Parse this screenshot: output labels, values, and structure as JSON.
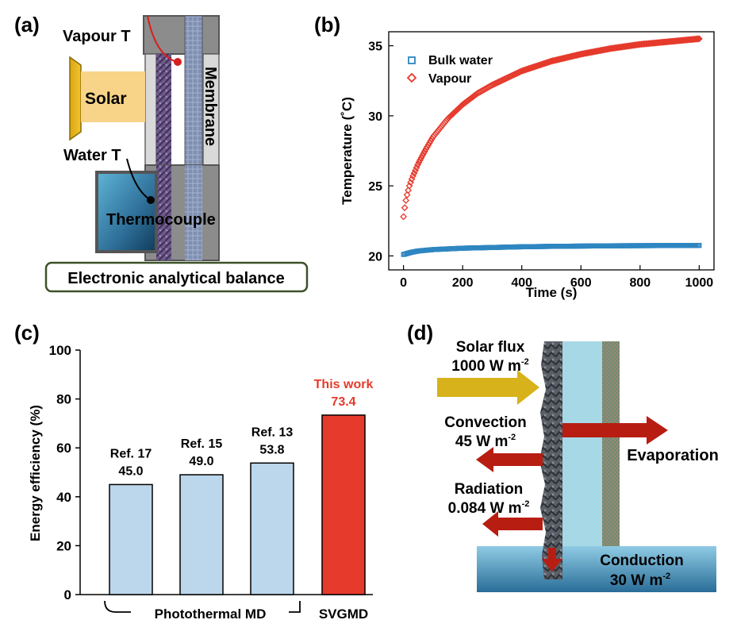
{
  "panel_a": {
    "label": "(a)",
    "vapour_t": "Vapour T",
    "solar": "Solar",
    "membrane": "Membrane",
    "water_t": "Water T",
    "thermocouple": "Thermocouple",
    "balance": "Electronic analytical balance"
  },
  "panel_b": {
    "label": "(b)"
  },
  "panel_c": {
    "label": "(c)",
    "group1": "Photothermal MD",
    "group2": "SVGMD"
  },
  "panel_d": {
    "label": "(d)",
    "solar_flux": "Solar flux",
    "solar_flux_value": "1000 W m",
    "convection": "Convection",
    "convection_value": "45 W m",
    "evaporation": "Evaporation",
    "radiation": "Radiation",
    "radiation_value": "0.084 W m",
    "conduction": "Conduction",
    "conduction_value": "30 W m",
    "exponent": "-2"
  },
  "chart_data": [
    {
      "type": "scatter",
      "xlabel": "Time (s)",
      "ylabel": "Temperature (˚C)",
      "xlim": [
        -50,
        1050
      ],
      "ylim": [
        19,
        36
      ],
      "xticks": [
        "0",
        "200",
        "400",
        "600",
        "800",
        "1000"
      ],
      "yticks": [
        "20",
        "25",
        "30",
        "35"
      ],
      "legend_position": "top-left",
      "series": [
        {
          "name": "Bulk water",
          "marker": "square",
          "color": "#2e86c1",
          "x": [
            0,
            25,
            50,
            100,
            150,
            200,
            300,
            400,
            500,
            600,
            700,
            800,
            900,
            1000
          ],
          "y": [
            20.1,
            20.25,
            20.35,
            20.45,
            20.5,
            20.55,
            20.6,
            20.65,
            20.68,
            20.7,
            20.72,
            20.73,
            20.74,
            20.75
          ]
        },
        {
          "name": "Vapour",
          "marker": "diamond",
          "color": "#e53a2c",
          "x": [
            0,
            5,
            10,
            20,
            30,
            50,
            75,
            100,
            150,
            200,
            250,
            300,
            400,
            500,
            600,
            700,
            800,
            900,
            950,
            1000
          ],
          "y": [
            22.8,
            23.6,
            24.2,
            25.0,
            25.6,
            26.6,
            27.6,
            28.5,
            29.8,
            30.8,
            31.6,
            32.2,
            33.2,
            33.9,
            34.4,
            34.8,
            35.1,
            35.3,
            35.4,
            35.5
          ]
        }
      ]
    },
    {
      "type": "bar",
      "ylabel": "Energy efficiency (%)",
      "ylim": [
        0,
        100
      ],
      "yticks": [
        "0",
        "20",
        "40",
        "60",
        "80",
        "100"
      ],
      "bars": [
        {
          "ref": "Ref. 17",
          "label": "45.0",
          "value": 45.0,
          "color": "#bcd7ec"
        },
        {
          "ref": "Ref. 15",
          "label": "49.0",
          "value": 49.0,
          "color": "#bcd7ec"
        },
        {
          "ref": "Ref. 13",
          "label": "53.8",
          "value": 53.8,
          "color": "#bcd7ec"
        },
        {
          "ref": "This work",
          "label": "73.4",
          "value": 73.4,
          "color": "#e53a2c"
        }
      ]
    }
  ]
}
